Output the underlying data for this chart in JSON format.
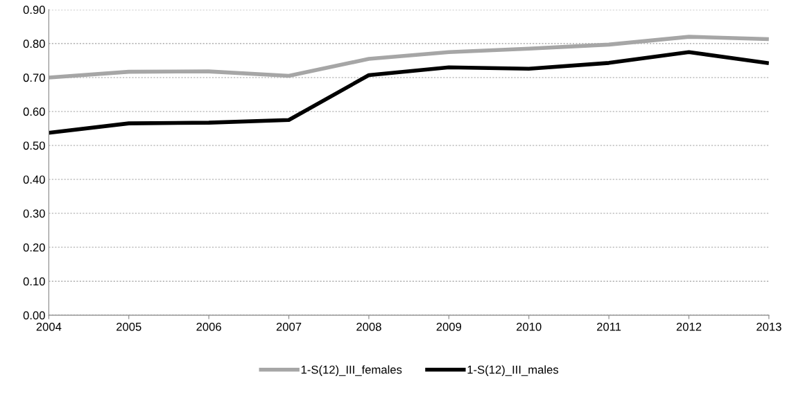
{
  "chart_data": {
    "type": "line",
    "x": [
      2004,
      2005,
      2006,
      2007,
      2008,
      2009,
      2010,
      2011,
      2012,
      2013
    ],
    "series": [
      {
        "name": "1-S(12)_III_females",
        "color": "#a6a6a6",
        "values": [
          0.7,
          0.717,
          0.718,
          0.705,
          0.755,
          0.775,
          0.785,
          0.797,
          0.82,
          0.813
        ]
      },
      {
        "name": "1-S(12)_III_males",
        "color": "#000000",
        "values": [
          0.537,
          0.565,
          0.567,
          0.575,
          0.707,
          0.73,
          0.726,
          0.743,
          0.775,
          0.742
        ]
      }
    ],
    "xlim": [
      2004,
      2013
    ],
    "xticks": [
      2004,
      2005,
      2006,
      2007,
      2008,
      2009,
      2010,
      2011,
      2012,
      2013
    ],
    "ylim": [
      0,
      0.9
    ],
    "yticks": [
      {
        "value": 0,
        "label": "0.00"
      },
      {
        "value": 0.1,
        "label": "0.10"
      },
      {
        "value": 0.2,
        "label": "0.20"
      },
      {
        "value": 0.3,
        "label": "0.30"
      },
      {
        "value": 0.4,
        "label": "0.40"
      },
      {
        "value": 0.5,
        "label": "0.50"
      },
      {
        "value": 0.6,
        "label": "0.60"
      },
      {
        "value": 0.7,
        "label": "0.70"
      },
      {
        "value": 0.8,
        "label": "0.80"
      },
      {
        "value": 0.9,
        "label": "0.90"
      }
    ],
    "grid": "y",
    "legend": "bottom",
    "marker": "none",
    "line_style": "solid"
  }
}
